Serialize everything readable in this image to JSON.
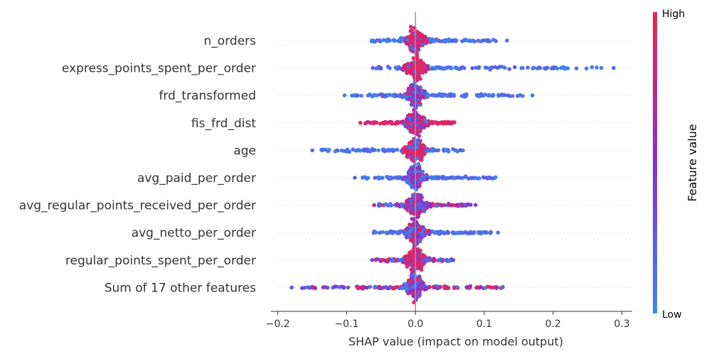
{
  "chart_data": {
    "type": "scatter",
    "subtype": "shap-beeswarm",
    "xlabel": "SHAP value (impact on model output)",
    "xlim": [
      -0.21,
      0.315
    ],
    "xticks": [
      -0.2,
      -0.1,
      0.0,
      0.1,
      0.2,
      0.3
    ],
    "xtick_labels": [
      "−0.2",
      "−0.1",
      "0.0",
      "0.1",
      "0.2",
      "0.3"
    ],
    "grid": false,
    "colorbar": {
      "label": "Feature value",
      "high_label": "High",
      "low_label": "Low",
      "low_color": "#3b87f0",
      "high_color": "#ef2454"
    },
    "features": [
      {
        "name": "n_orders",
        "x_range": [
          -0.07,
          0.133
        ],
        "outliers": [
          0.098,
          0.133
        ],
        "center_color": "high",
        "tail_color": "low"
      },
      {
        "name": "express_points_spent_per_order",
        "x_range": [
          -0.062,
          0.288
        ],
        "outliers": [
          -0.062,
          0.27,
          0.288
        ],
        "center_color": "high",
        "tail_color": "low"
      },
      {
        "name": "frd_transformed",
        "x_range": [
          -0.103,
          0.17
        ],
        "outliers": [
          -0.103,
          0.17
        ],
        "center_color": "mixed",
        "tail_color": "low"
      },
      {
        "name": "fis_frd_dist",
        "x_range": [
          -0.08,
          0.063
        ],
        "outliers": [
          -0.08
        ],
        "center_color": "mixed",
        "tail_color": "high"
      },
      {
        "name": "age",
        "x_range": [
          -0.15,
          0.075
        ],
        "outliers": [
          -0.15
        ],
        "center_color": "high",
        "tail_color": "low"
      },
      {
        "name": "avg_paid_per_order",
        "x_range": [
          -0.088,
          0.13
        ],
        "outliers": [
          -0.088
        ],
        "center_color": "mixed",
        "tail_color": "low"
      },
      {
        "name": "avg_regular_points_received_per_order",
        "x_range": [
          -0.06,
          0.096
        ],
        "outliers": [
          -0.06
        ],
        "center_color": "mixed",
        "tail_color": "mixed"
      },
      {
        "name": "avg_netto_per_order",
        "x_range": [
          -0.067,
          0.12
        ],
        "outliers": [
          0.12
        ],
        "center_color": "mixed",
        "tail_color": "low"
      },
      {
        "name": "regular_points_spent_per_order",
        "x_range": [
          -0.063,
          0.06
        ],
        "outliers": [
          -0.063
        ],
        "center_color": "high",
        "tail_color": "mixed"
      },
      {
        "name": "Sum of 17 other features",
        "x_range": [
          -0.18,
          0.142
        ],
        "outliers": [
          -0.18
        ],
        "center_color": "mixed",
        "tail_color": "mixed"
      }
    ]
  }
}
